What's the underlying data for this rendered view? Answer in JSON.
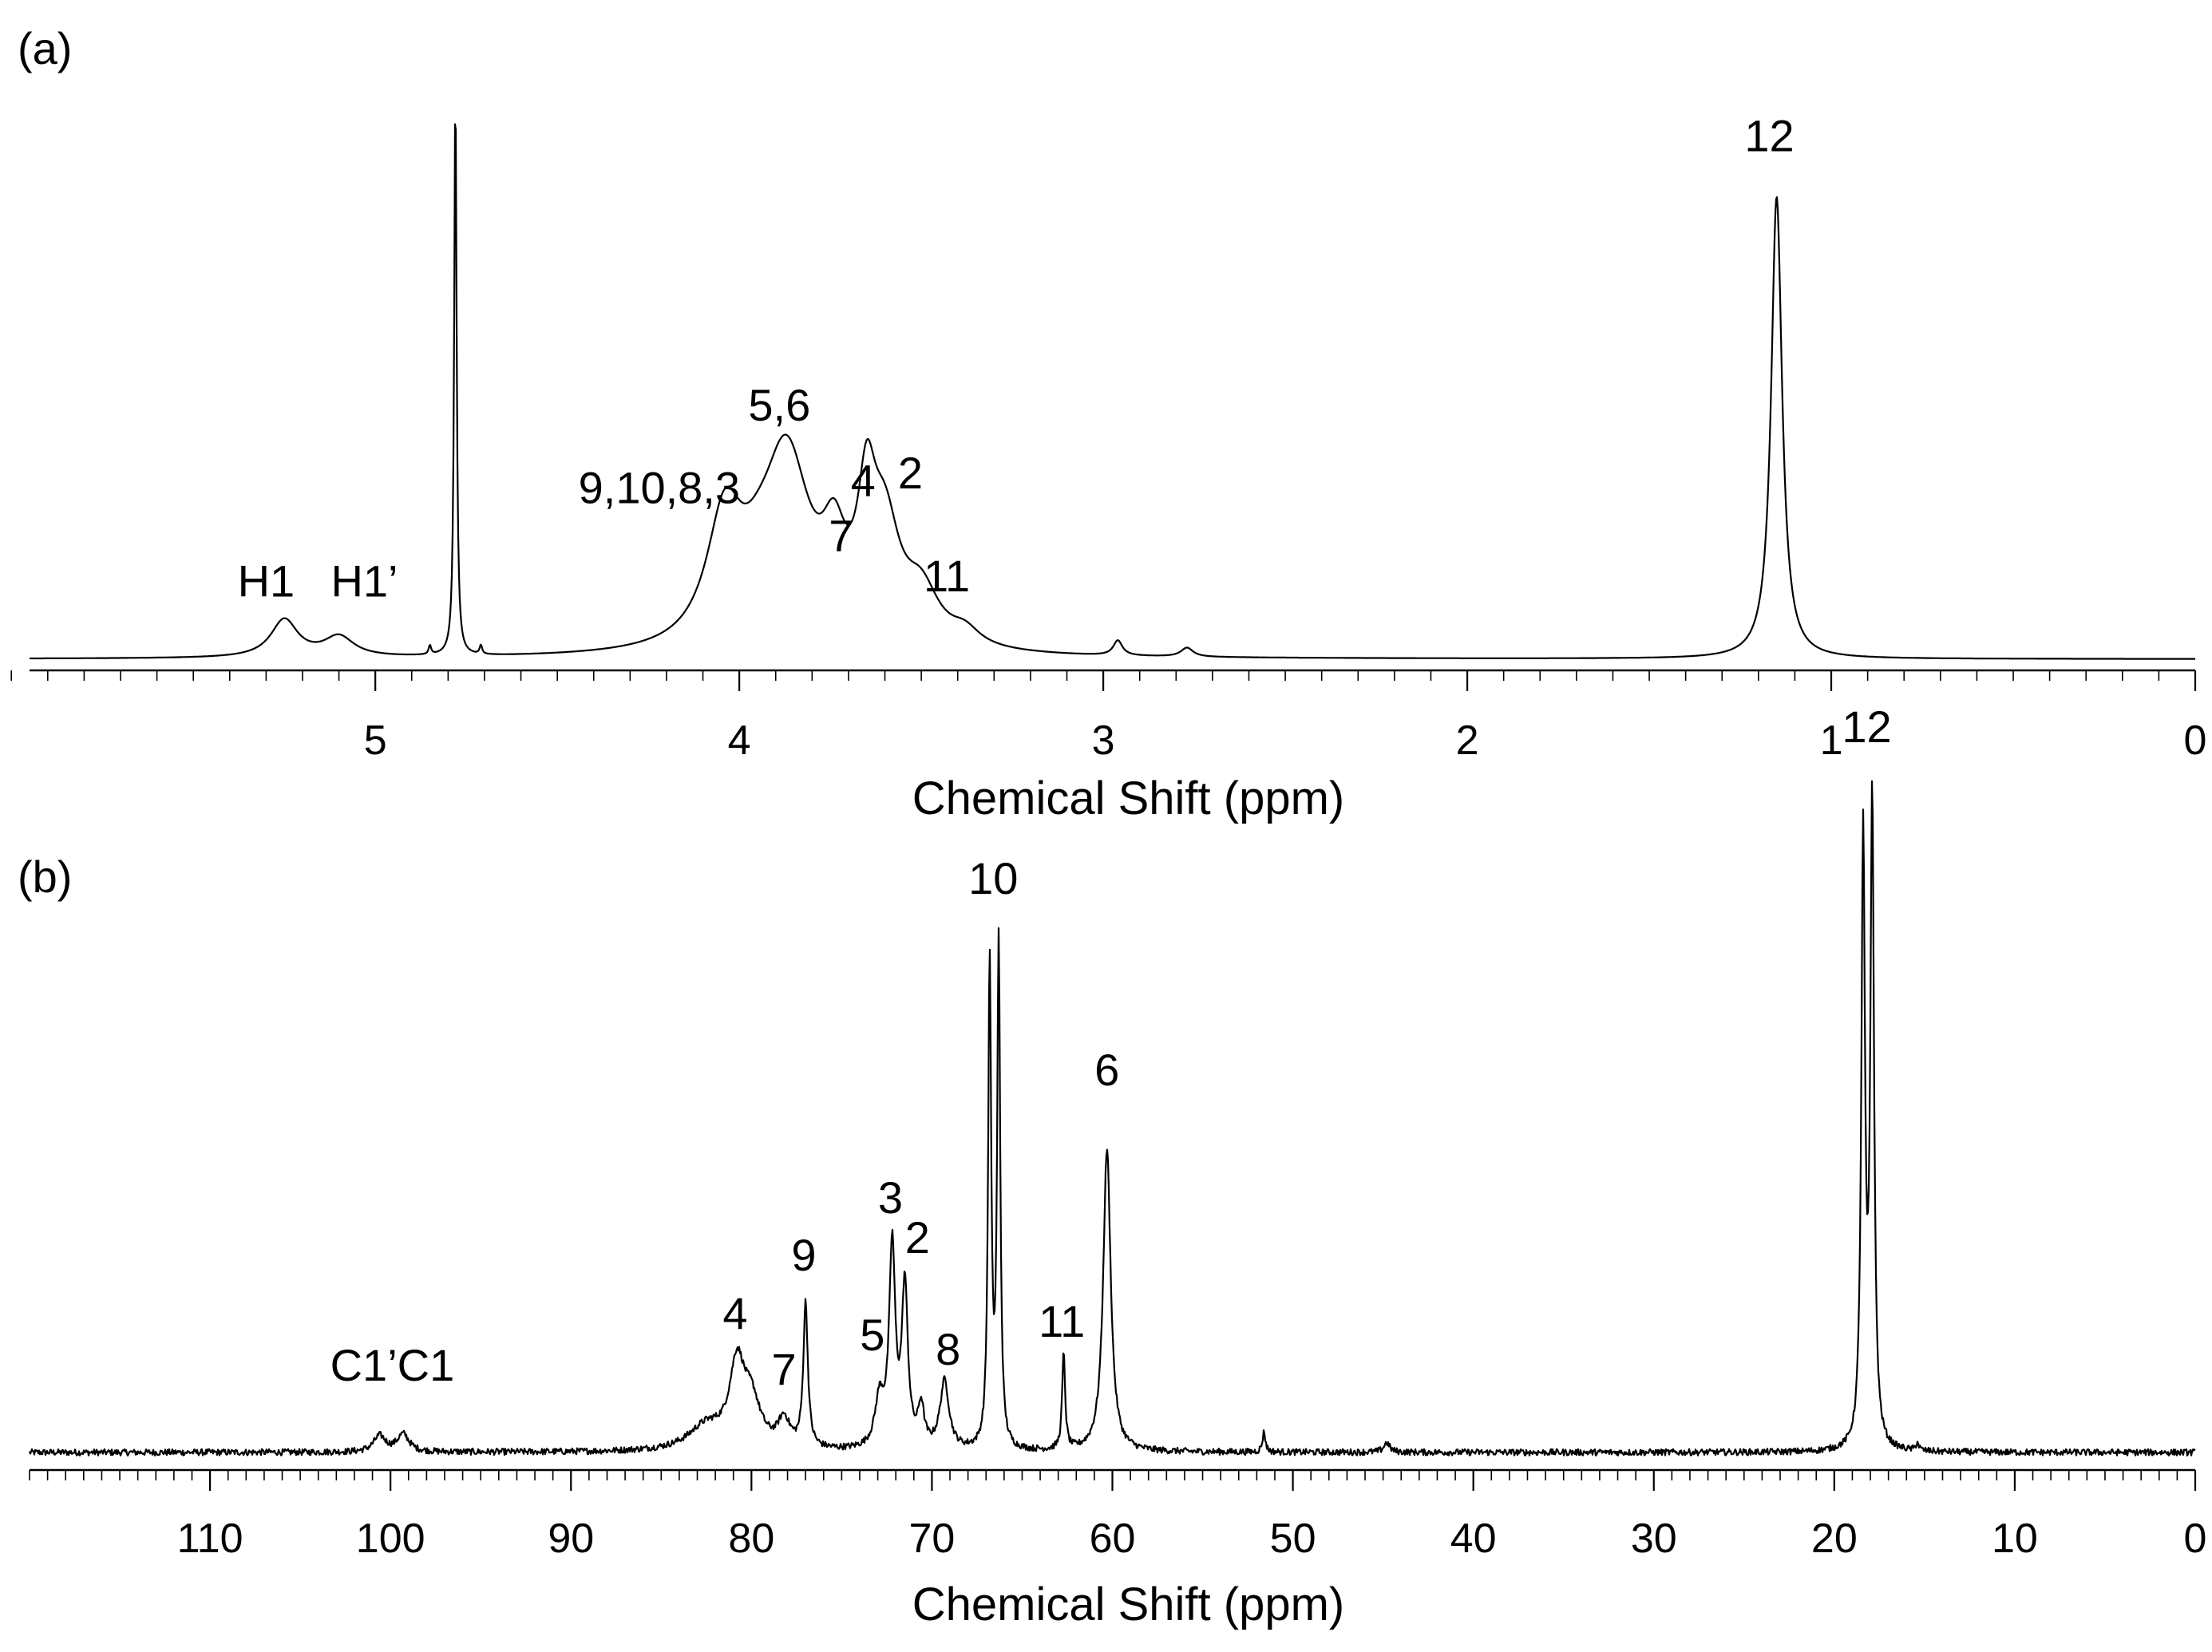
{
  "chart_data": [
    {
      "panel_label": "(a)",
      "type": "line",
      "nucleus": "1H",
      "xlabel": "Chemical Shift (ppm)",
      "xlim": [
        5.95,
        0.0
      ],
      "major_ticks": [
        5,
        4,
        3,
        2,
        1,
        0
      ],
      "tick_labels": [
        "5",
        "4",
        "3",
        "2",
        "1",
        "0"
      ],
      "minor_step": 0.1,
      "baseline_noise": 0,
      "peaks": [
        {
          "x": 5.25,
          "h": 0.075,
          "w": 0.045
        },
        {
          "x": 5.1,
          "h": 0.04,
          "w": 0.05
        },
        {
          "x": 4.78,
          "h": 1.13,
          "w": 0.004
        },
        {
          "x": 4.85,
          "h": 0.018,
          "w": 0.004
        },
        {
          "x": 4.71,
          "h": 0.018,
          "w": 0.004
        },
        {
          "x": 4.04,
          "h": 0.245,
          "w": 0.06
        },
        {
          "x": 3.95,
          "h": 0.06,
          "w": 0.06
        },
        {
          "x": 3.87,
          "h": 0.37,
          "w": 0.08
        },
        {
          "x": 3.74,
          "h": 0.15,
          "w": 0.04
        },
        {
          "x": 3.65,
          "h": 0.24,
          "w": 0.03
        },
        {
          "x": 3.6,
          "h": 0.21,
          "w": 0.05
        },
        {
          "x": 3.5,
          "h": 0.1,
          "w": 0.06
        },
        {
          "x": 3.38,
          "h": 0.03,
          "w": 0.05
        },
        {
          "x": 2.96,
          "h": 0.03,
          "w": 0.015
        },
        {
          "x": 2.77,
          "h": 0.018,
          "w": 0.02
        },
        {
          "x": 1.15,
          "h": 0.92,
          "w": 0.018
        }
      ],
      "annotations": [
        {
          "text": "H1",
          "x": 5.3,
          "y": 0.125
        },
        {
          "text": "H1’",
          "x": 5.03,
          "y": 0.125
        },
        {
          "text": "9,10,8,3",
          "x": 4.22,
          "y": 0.31
        },
        {
          "text": "5,6",
          "x": 3.89,
          "y": 0.475
        },
        {
          "text": "7",
          "x": 3.72,
          "y": 0.215
        },
        {
          "text": "4",
          "x": 3.66,
          "y": 0.325
        },
        {
          "text": "2",
          "x": 3.53,
          "y": 0.34
        },
        {
          "text": "11",
          "x": 3.43,
          "y": 0.135
        },
        {
          "text": "12",
          "x": 1.17,
          "y": 1.01
        }
      ]
    },
    {
      "panel_label": "(b)",
      "type": "line",
      "nucleus": "13C",
      "xlabel": "Chemical Shift (ppm)",
      "xlim": [
        120.0,
        0.0
      ],
      "major_ticks": [
        110,
        100,
        90,
        80,
        70,
        60,
        50,
        40,
        30,
        20,
        10,
        0
      ],
      "tick_labels": [
        "110",
        "100",
        "90",
        "80",
        "70",
        "60",
        "50",
        "40",
        "30",
        "20",
        "10",
        "0"
      ],
      "minor_step": 1,
      "baseline_noise": 0.004,
      "peaks": [
        {
          "x": 100.6,
          "h": 0.02,
          "w": 0.4
        },
        {
          "x": 99.3,
          "h": 0.022,
          "w": 0.4
        },
        {
          "x": 80.8,
          "h": 0.1,
          "w": 0.5
        },
        {
          "x": 80.0,
          "h": 0.055,
          "w": 0.6
        },
        {
          "x": 82.5,
          "h": 0.03,
          "w": 1.2
        },
        {
          "x": 78.2,
          "h": 0.035,
          "w": 0.4
        },
        {
          "x": 77.0,
          "h": 0.18,
          "w": 0.15
        },
        {
          "x": 72.9,
          "h": 0.06,
          "w": 0.3
        },
        {
          "x": 72.2,
          "h": 0.25,
          "w": 0.2
        },
        {
          "x": 71.5,
          "h": 0.2,
          "w": 0.2
        },
        {
          "x": 70.6,
          "h": 0.05,
          "w": 0.2
        },
        {
          "x": 69.3,
          "h": 0.085,
          "w": 0.3
        },
        {
          "x": 66.8,
          "h": 0.61,
          "w": 0.1
        },
        {
          "x": 66.3,
          "h": 0.63,
          "w": 0.1
        },
        {
          "x": 62.7,
          "h": 0.12,
          "w": 0.1
        },
        {
          "x": 60.3,
          "h": 0.38,
          "w": 0.25
        },
        {
          "x": 51.6,
          "h": 0.025,
          "w": 0.1
        },
        {
          "x": 44.8,
          "h": 0.012,
          "w": 0.2
        },
        {
          "x": 18.4,
          "h": 0.76,
          "w": 0.12
        },
        {
          "x": 17.9,
          "h": 0.81,
          "w": 0.12
        },
        {
          "x": 15.4,
          "h": 0.01,
          "w": 0.1
        }
      ],
      "annotations": [
        {
          "text": "C1’C1",
          "x": 99.9,
          "y": 0.09
        },
        {
          "text": "4",
          "x": 80.9,
          "y": 0.155
        },
        {
          "text": "7",
          "x": 78.2,
          "y": 0.085
        },
        {
          "text": "9",
          "x": 77.1,
          "y": 0.228
        },
        {
          "text": "5",
          "x": 73.3,
          "y": 0.128
        },
        {
          "text": "3",
          "x": 72.3,
          "y": 0.3
        },
        {
          "text": "2",
          "x": 70.8,
          "y": 0.25
        },
        {
          "text": "8",
          "x": 69.1,
          "y": 0.11
        },
        {
          "text": "10",
          "x": 66.6,
          "y": 0.7
        },
        {
          "text": "11",
          "x": 62.8,
          "y": 0.145
        },
        {
          "text": "6",
          "x": 60.3,
          "y": 0.46
        },
        {
          "text": "12",
          "x": 18.2,
          "y": 0.89
        }
      ]
    }
  ]
}
